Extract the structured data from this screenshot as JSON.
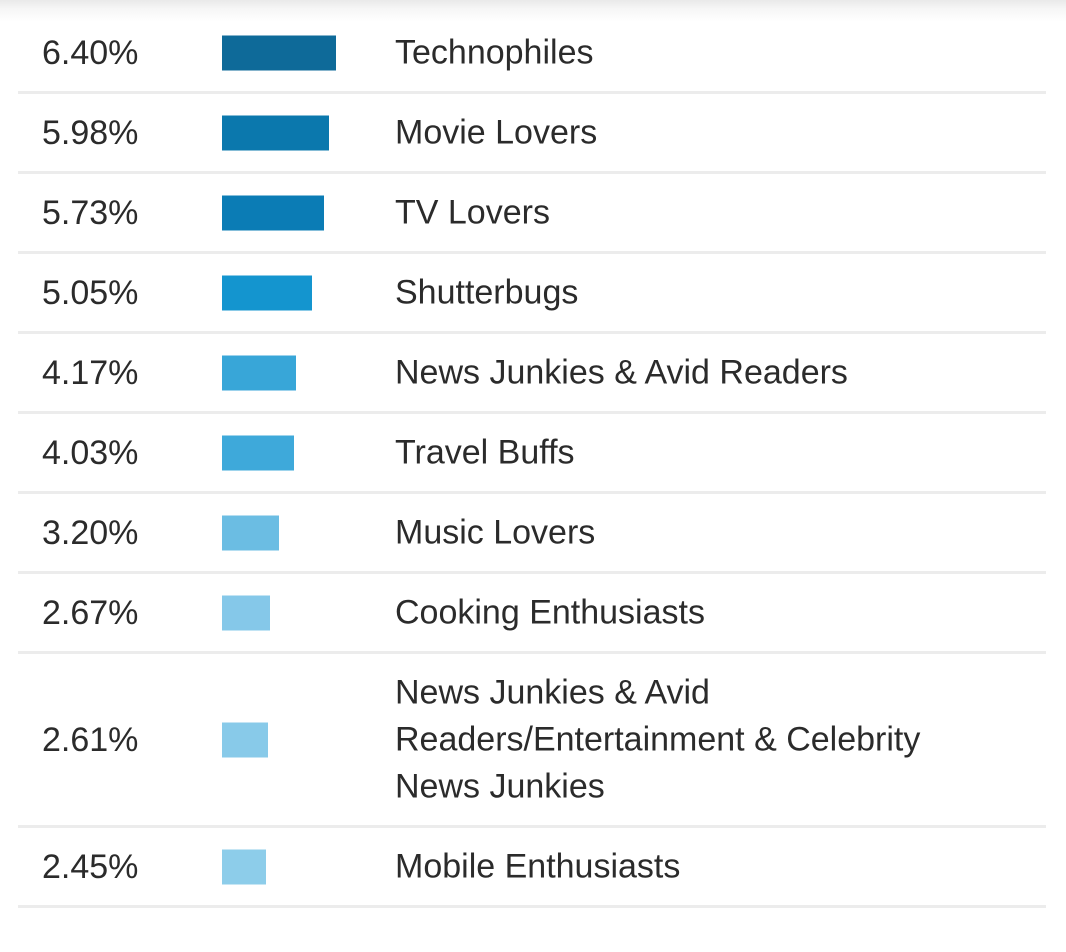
{
  "chart_data": {
    "type": "bar",
    "orientation": "horizontal",
    "title": "",
    "xlabel": "",
    "ylabel": "",
    "grid": false,
    "legend": "none",
    "rows": [
      {
        "value_label": "6.40%",
        "value": 6.4,
        "category": "Technophiles",
        "color": "#0e6a99"
      },
      {
        "value_label": "5.98%",
        "value": 5.98,
        "category": "Movie Lovers",
        "color": "#0b78ad"
      },
      {
        "value_label": "5.73%",
        "value": 5.73,
        "category": "TV Lovers",
        "color": "#0b7cb5"
      },
      {
        "value_label": "5.05%",
        "value": 5.05,
        "category": "Shutterbugs",
        "color": "#1495cf"
      },
      {
        "value_label": "4.17%",
        "value": 4.17,
        "category": "News Junkies & Avid Readers",
        "color": "#38a6d8"
      },
      {
        "value_label": "4.03%",
        "value": 4.03,
        "category": "Travel Buffs",
        "color": "#3ea9da"
      },
      {
        "value_label": "3.20%",
        "value": 3.2,
        "category": "Music Lovers",
        "color": "#6bbde3"
      },
      {
        "value_label": "2.67%",
        "value": 2.67,
        "category": "Cooking Enthusiasts",
        "color": "#85c8e9"
      },
      {
        "value_label": "2.61%",
        "value": 2.61,
        "category": "News Junkies & Avid\nReaders/Entertainment & Celebrity\nNews Junkies",
        "color": "#88cae9"
      },
      {
        "value_label": "2.45%",
        "value": 2.45,
        "category": "Mobile Enthusiasts",
        "color": "#8dcdea"
      }
    ]
  }
}
